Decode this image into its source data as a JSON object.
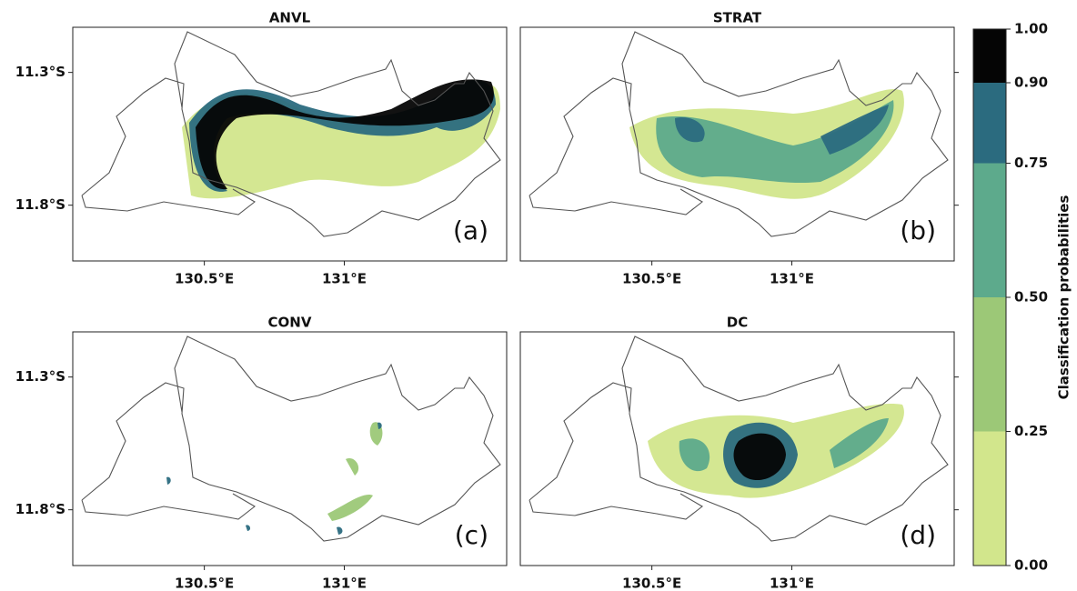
{
  "panels": [
    {
      "title": "ANVL",
      "label": "(a)"
    },
    {
      "title": "STRAT",
      "label": "(b)"
    },
    {
      "title": "CONV",
      "label": "(c)"
    },
    {
      "title": "DC",
      "label": "(d)"
    }
  ],
  "lon_range": [
    130.03,
    131.58
  ],
  "lat_range": [
    -12.01,
    -11.13
  ],
  "lon_ticks": [
    {
      "value": 130.5,
      "label": "130.5°E"
    },
    {
      "value": 131,
      "label": "131°E"
    }
  ],
  "lat_ticks": [
    {
      "value": -11.3,
      "label": "11.3°S"
    },
    {
      "value": -11.8,
      "label": "11.8°S"
    }
  ],
  "colorbar": {
    "label": "Classification probabilities",
    "ticks": [
      {
        "value": 0,
        "label": "0.00"
      },
      {
        "value": 0.25,
        "label": "0.25"
      },
      {
        "value": 0.5,
        "label": "0.50"
      },
      {
        "value": 0.75,
        "label": "0.75"
      },
      {
        "value": 0.9,
        "label": "0.90"
      },
      {
        "value": 1,
        "label": "1.00"
      }
    ],
    "colors": [
      "#d2e68c",
      "#9cc877",
      "#5daa8c",
      "#2b6b7f",
      "#050505"
    ]
  }
}
